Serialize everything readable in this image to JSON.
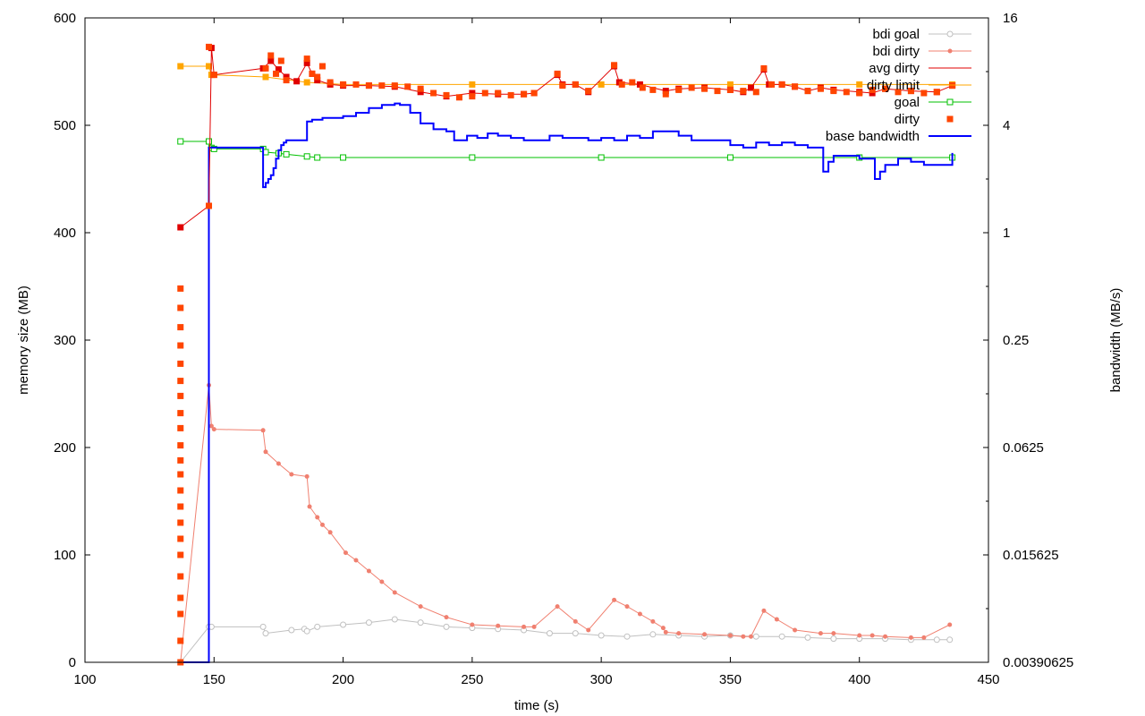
{
  "chart_data": {
    "type": "line",
    "xlabel": "time (s)",
    "ylabel": "memory size (MB)",
    "y2label": "bandwidth (MB/s)",
    "xlim": [
      100,
      450
    ],
    "ylim": [
      0,
      600
    ],
    "y2lim_log2": [
      -8,
      4
    ],
    "y2_scale": "log2",
    "grid": false,
    "legend_position": "top-right",
    "x_ticks": [
      "100",
      "150",
      "200",
      "250",
      "300",
      "350",
      "400",
      "450"
    ],
    "y_ticks": [
      "0",
      "100",
      "200",
      "300",
      "400",
      "500",
      "600"
    ],
    "y2_ticks": [
      "0.00390625",
      "0.015625",
      "0.0625",
      "0.25",
      "1",
      "4",
      "16"
    ],
    "colors": {
      "bdi_goal": "#c0c0c0",
      "bdi_dirty": "#f08070",
      "avg_dirty": "#e00000",
      "dirty_limit": "#ffa500",
      "goal": "#00c000",
      "dirty": "#ff4500",
      "base_bandwidth": "#0000ff"
    },
    "series": [
      {
        "key": "bdi_goal",
        "name": "bdi goal",
        "axis": "y1",
        "x": [
          137,
          148,
          149,
          169,
          170,
          180,
          185,
          186,
          190,
          200,
          210,
          220,
          230,
          240,
          250,
          260,
          270,
          280,
          290,
          300,
          310,
          320,
          330,
          340,
          350,
          360,
          370,
          380,
          390,
          400,
          410,
          420,
          430,
          435
        ],
        "y": [
          0,
          33,
          33,
          33,
          27,
          30,
          31,
          29,
          33,
          35,
          37,
          40,
          37,
          33,
          32,
          31,
          30,
          27,
          27,
          25,
          24,
          26,
          25,
          24,
          25,
          24,
          24,
          23,
          22,
          22,
          22,
          21,
          21,
          21
        ]
      },
      {
        "key": "bdi_dirty",
        "name": "bdi dirty",
        "axis": "y1",
        "x": [
          137,
          148,
          149,
          150,
          169,
          170,
          175,
          180,
          186,
          187,
          190,
          192,
          195,
          201,
          205,
          210,
          215,
          220,
          230,
          240,
          250,
          260,
          270,
          274,
          283,
          290,
          295,
          305,
          310,
          315,
          320,
          324,
          325,
          330,
          340,
          350,
          355,
          358,
          363,
          368,
          375,
          385,
          390,
          400,
          405,
          410,
          420,
          425,
          435
        ],
        "y": [
          0,
          258,
          220,
          217,
          216,
          196,
          185,
          175,
          173,
          145,
          135,
          128,
          121,
          102,
          95,
          85,
          75,
          65,
          52,
          42,
          35,
          34,
          33,
          33,
          52,
          38,
          30,
          58,
          52,
          45,
          38,
          32,
          28,
          27,
          26,
          25,
          24,
          24,
          48,
          40,
          30,
          27,
          27,
          25,
          25,
          24,
          23,
          23,
          35
        ]
      },
      {
        "key": "avg_dirty",
        "name": "avg dirty",
        "axis": "y1",
        "x": [
          137,
          148,
          149,
          150,
          169,
          172,
          175,
          178,
          182,
          186,
          188,
          190,
          195,
          200,
          210,
          220,
          230,
          240,
          250,
          260,
          270,
          274,
          283,
          285,
          290,
          295,
          305,
          307,
          315,
          325,
          330,
          340,
          350,
          355,
          358,
          363,
          365,
          370,
          375,
          380,
          385,
          390,
          400,
          405,
          410,
          420,
          430,
          436
        ],
        "y": [
          405,
          425,
          572,
          547,
          553,
          560,
          552,
          545,
          541,
          558,
          548,
          542,
          538,
          537,
          537,
          536,
          531,
          527,
          530,
          529,
          529,
          530,
          547,
          538,
          538,
          531,
          555,
          540,
          538,
          532,
          534,
          535,
          533,
          531,
          535,
          552,
          538,
          538,
          536,
          532,
          535,
          533,
          531,
          530,
          534,
          532,
          531,
          537
        ]
      },
      {
        "key": "dirty_limit",
        "name": "dirty limit",
        "axis": "y1",
        "x": [
          137,
          148,
          149,
          170,
          186,
          200,
          250,
          300,
          350,
          400,
          436
        ],
        "y": [
          555,
          555,
          547,
          545,
          540,
          538,
          538,
          538,
          538,
          538,
          538
        ]
      },
      {
        "key": "goal",
        "name": "goal",
        "axis": "y1",
        "x": [
          137,
          148,
          149,
          150,
          169,
          170,
          175,
          178,
          186,
          190,
          200,
          250,
          300,
          350,
          400,
          436
        ],
        "y": [
          485,
          485,
          479,
          478,
          478,
          475,
          474,
          473,
          471,
          470,
          470,
          470,
          470,
          470,
          470,
          470
        ],
        "markers": "open-square"
      },
      {
        "key": "dirty",
        "name": "dirty",
        "axis": "y1",
        "points_only": true,
        "x": [
          137,
          137,
          137,
          137,
          137,
          137,
          137,
          137,
          137,
          137,
          137,
          137,
          137,
          137,
          137,
          137,
          137,
          137,
          137,
          137,
          137,
          137,
          148,
          148,
          150,
          170,
          172,
          174,
          176,
          178,
          186,
          188,
          190,
          192,
          195,
          200,
          205,
          210,
          215,
          220,
          225,
          230,
          235,
          240,
          245,
          250,
          255,
          260,
          265,
          270,
          274,
          283,
          285,
          290,
          295,
          305,
          308,
          312,
          316,
          320,
          325,
          330,
          335,
          340,
          345,
          350,
          355,
          360,
          363,
          366,
          370,
          375,
          380,
          385,
          390,
          395,
          400,
          405,
          410,
          415,
          420,
          425,
          430,
          436
        ],
        "y": [
          0,
          20,
          45,
          60,
          80,
          100,
          115,
          130,
          145,
          160,
          175,
          188,
          202,
          218,
          232,
          248,
          262,
          278,
          295,
          312,
          330,
          348,
          425,
          573,
          547,
          553,
          565,
          548,
          560,
          542,
          562,
          548,
          545,
          555,
          540,
          538,
          538,
          537,
          537,
          537,
          536,
          534,
          530,
          528,
          526,
          527,
          530,
          530,
          528,
          529,
          530,
          548,
          537,
          538,
          532,
          556,
          538,
          540,
          535,
          533,
          529,
          533,
          535,
          534,
          532,
          533,
          532,
          531,
          553,
          538,
          538,
          536,
          532,
          534,
          532,
          531,
          530,
          533,
          534,
          531,
          532,
          530,
          531,
          537
        ]
      },
      {
        "key": "base_bandwidth",
        "name": "base bandwidth",
        "axis": "y2",
        "step": true,
        "x": [
          137,
          148,
          148,
          169,
          169,
          170,
          171,
          172,
          173,
          174,
          175,
          176,
          177,
          178,
          180,
          185,
          186,
          188,
          192,
          196,
          200,
          205,
          210,
          215,
          220,
          222,
          226,
          230,
          235,
          240,
          243,
          248,
          252,
          256,
          260,
          265,
          270,
          275,
          280,
          285,
          290,
          295,
          300,
          305,
          310,
          315,
          320,
          325,
          330,
          335,
          340,
          345,
          350,
          355,
          360,
          365,
          370,
          375,
          380,
          385,
          386,
          388,
          390,
          395,
          400,
          405,
          406,
          408,
          410,
          415,
          420,
          425,
          430,
          435,
          436
        ],
        "y": [
          0.00390625,
          0.00390625,
          3.0,
          3.0,
          1.8,
          1.9,
          2.0,
          2.1,
          2.3,
          2.6,
          2.9,
          3.1,
          3.2,
          3.3,
          3.3,
          3.3,
          4.2,
          4.3,
          4.4,
          4.4,
          4.5,
          4.7,
          5.0,
          5.2,
          5.3,
          5.2,
          4.7,
          4.1,
          3.8,
          3.7,
          3.3,
          3.5,
          3.4,
          3.6,
          3.5,
          3.4,
          3.3,
          3.3,
          3.5,
          3.4,
          3.4,
          3.3,
          3.4,
          3.3,
          3.5,
          3.4,
          3.7,
          3.7,
          3.5,
          3.3,
          3.3,
          3.3,
          3.1,
          3.0,
          3.2,
          3.1,
          3.2,
          3.1,
          3.0,
          3.0,
          2.2,
          2.5,
          2.7,
          2.7,
          2.6,
          2.6,
          2.0,
          2.2,
          2.4,
          2.6,
          2.5,
          2.4,
          2.4,
          2.4,
          2.8
        ]
      }
    ]
  }
}
